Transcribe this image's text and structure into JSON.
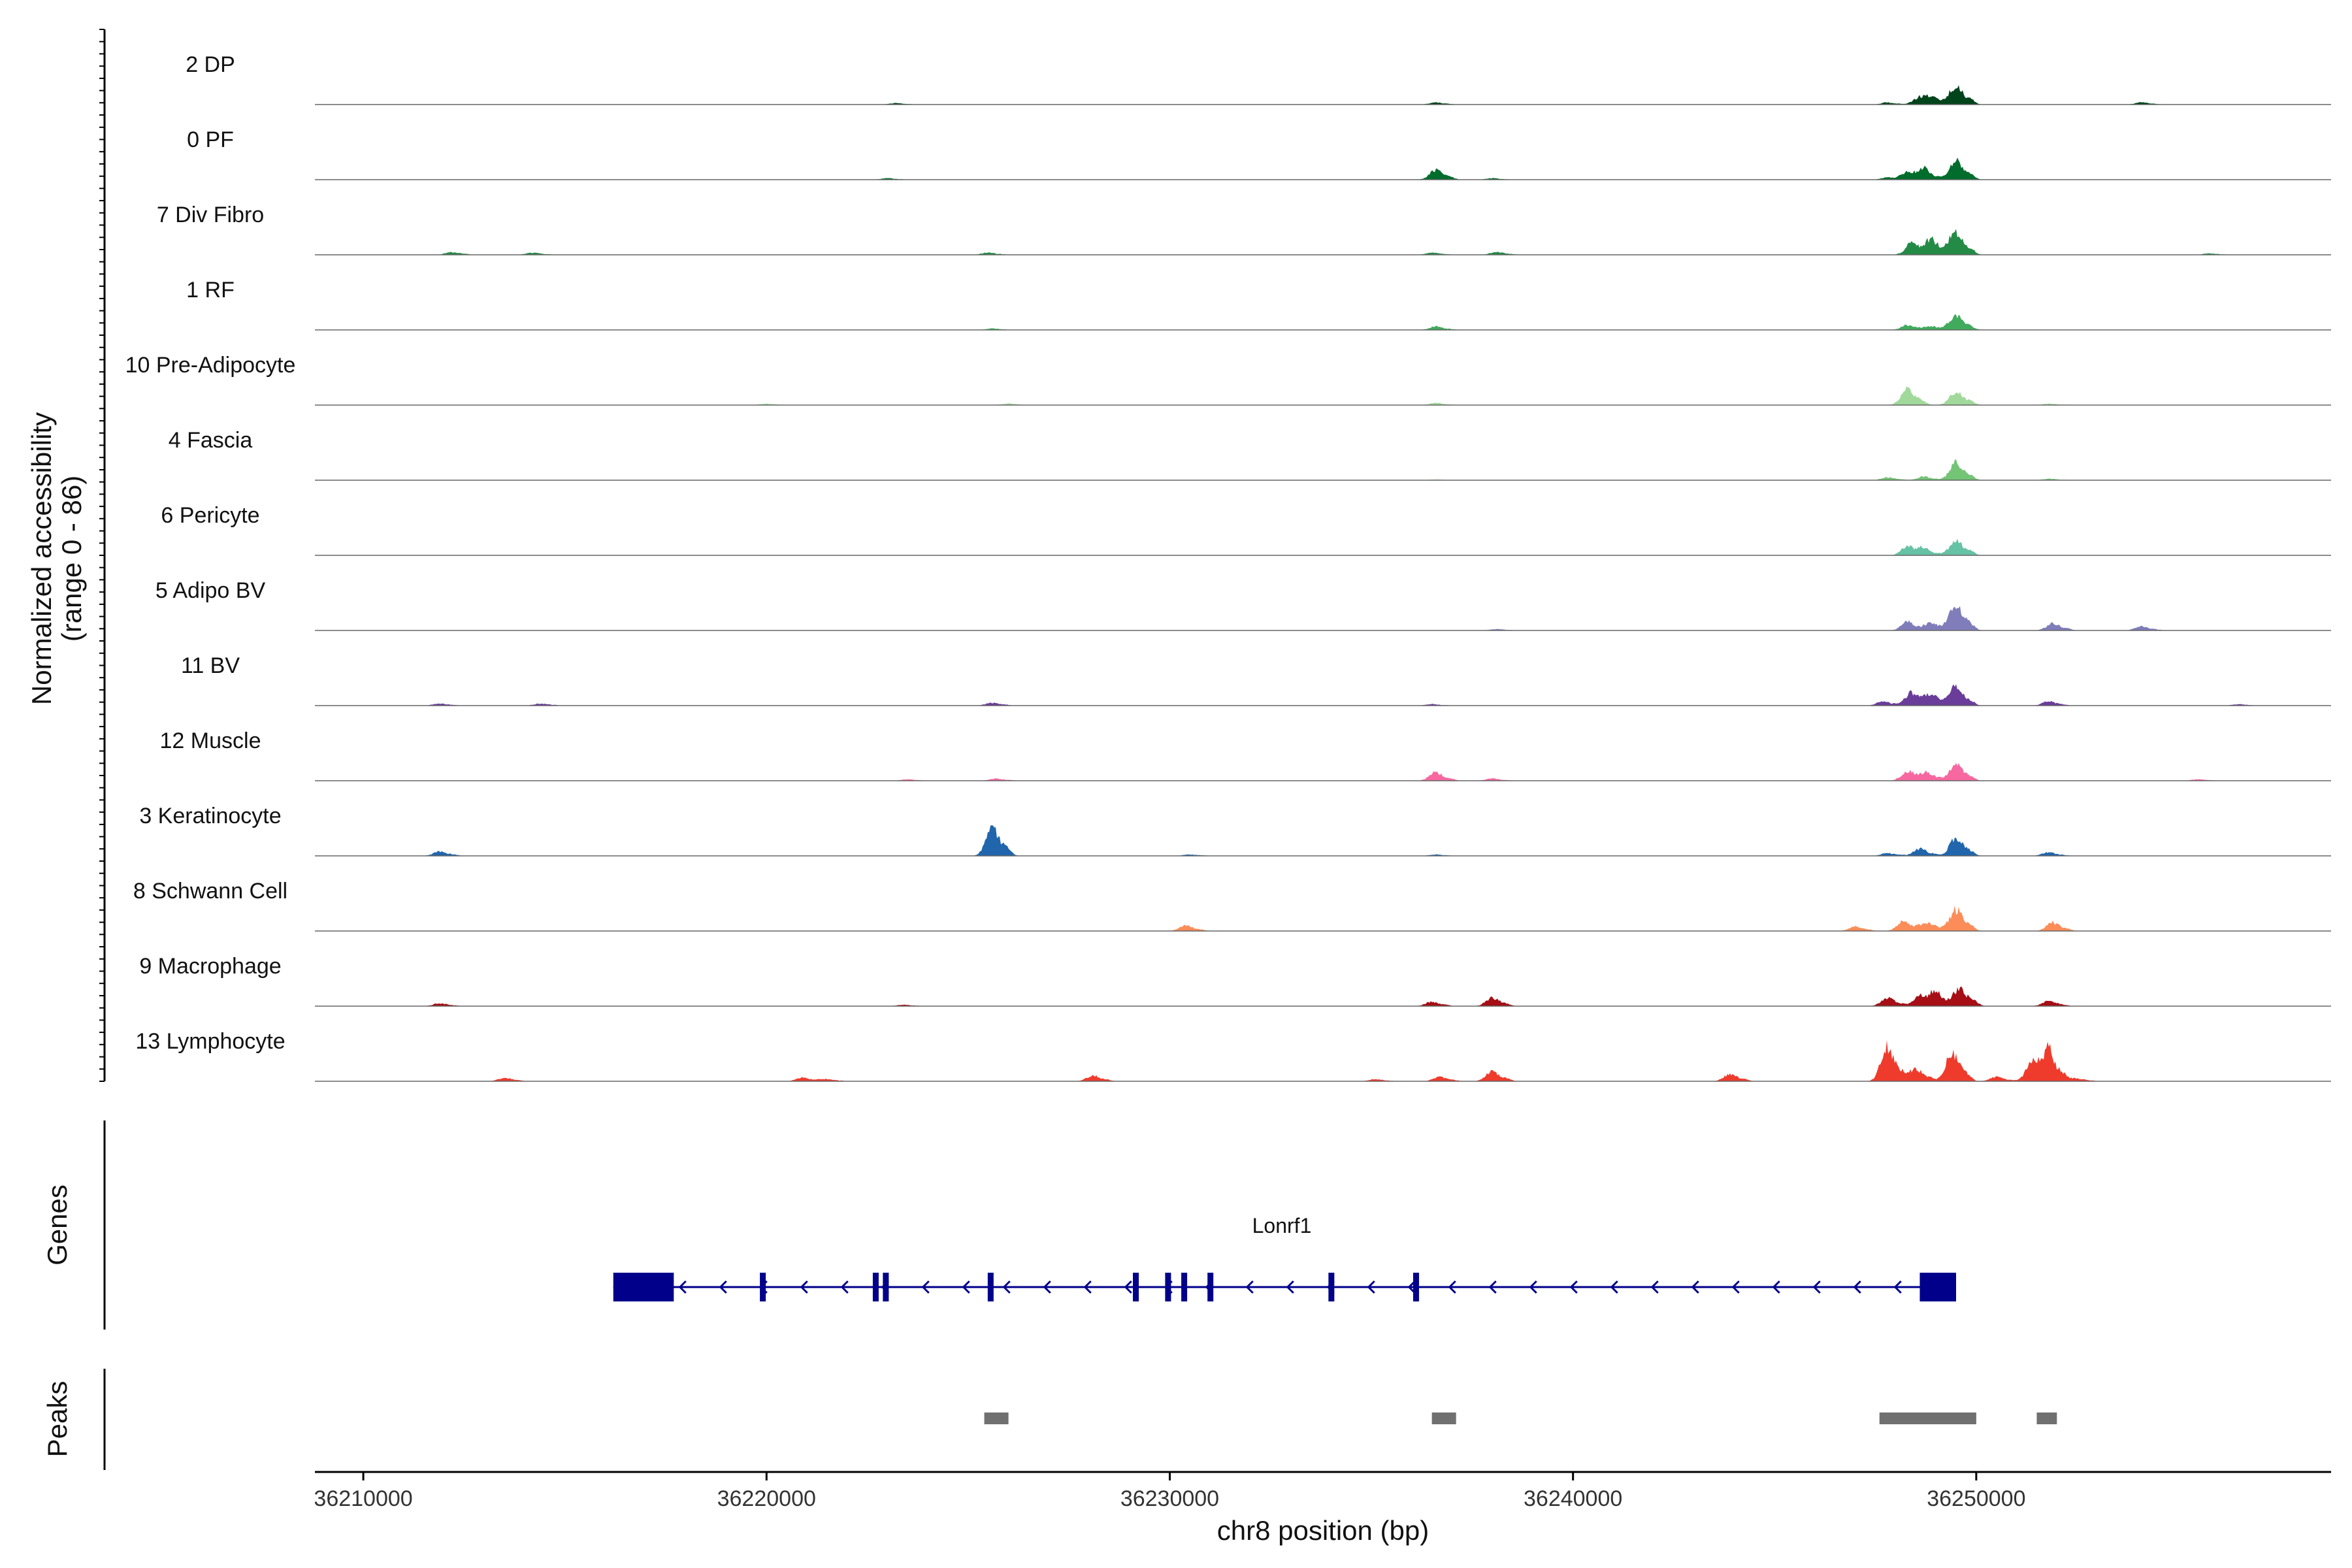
{
  "chart_data": {
    "type": "area",
    "title": "",
    "ylabel_line1": "Normalized accessibility",
    "ylabel_line2": "(range 0 - 86)",
    "yrange": [
      0,
      86
    ],
    "xlabel": "chr8 position (bp)",
    "xlim": [
      36208800,
      36258800
    ],
    "xticks": [
      36210000,
      36220000,
      36230000,
      36240000,
      36250000
    ],
    "xtick_labels": [
      "36210000",
      "36220000",
      "36230000",
      "36240000",
      "36250000"
    ],
    "genes_label": "Genes",
    "peaks_label": "Peaks",
    "tracks": [
      {
        "name": "2 DP",
        "color": "#00441b",
        "peaks": [
          [
            36223200,
            2
          ],
          [
            36236600,
            3
          ],
          [
            36247800,
            3
          ],
          [
            36248600,
            10
          ],
          [
            36248900,
            8
          ],
          [
            36249500,
            26
          ],
          [
            36254100,
            3
          ]
        ]
      },
      {
        "name": "0 PF",
        "color": "#006d2c",
        "peaks": [
          [
            36223000,
            2
          ],
          [
            36236600,
            14
          ],
          [
            36238000,
            2
          ],
          [
            36247800,
            3
          ],
          [
            36248300,
            10
          ],
          [
            36248700,
            14
          ],
          [
            36249500,
            26
          ]
        ]
      },
      {
        "name": "7 Div Fibro",
        "color": "#238b45",
        "peaks": [
          [
            36212200,
            4
          ],
          [
            36214200,
            3
          ],
          [
            36225500,
            3
          ],
          [
            36236500,
            3
          ],
          [
            36238100,
            4
          ],
          [
            36248400,
            16
          ],
          [
            36248900,
            20
          ],
          [
            36249500,
            32
          ],
          [
            36255800,
            2
          ]
        ]
      },
      {
        "name": "1 RF",
        "color": "#41ab5d",
        "peaks": [
          [
            36225600,
            2
          ],
          [
            36236600,
            5
          ],
          [
            36248300,
            7
          ],
          [
            36248900,
            5
          ],
          [
            36249500,
            20
          ]
        ]
      },
      {
        "name": "10 Pre-Adipocyte",
        "color": "#a1d99b",
        "peaks": [
          [
            36220000,
            2
          ],
          [
            36226000,
            2
          ],
          [
            36236600,
            3
          ],
          [
            36248300,
            24
          ],
          [
            36249500,
            20
          ],
          [
            36251800,
            2
          ]
        ]
      },
      {
        "name": "4 Fascia",
        "color": "#74c476",
        "peaks": [
          [
            36236600,
            1
          ],
          [
            36247800,
            4
          ],
          [
            36248700,
            5
          ],
          [
            36249500,
            24
          ],
          [
            36251800,
            2
          ]
        ]
      },
      {
        "name": "6 Pericyte",
        "color": "#66c2a4",
        "peaks": [
          [
            36248300,
            12
          ],
          [
            36248700,
            8
          ],
          [
            36249500,
            22
          ]
        ]
      },
      {
        "name": "5 Adipo BV",
        "color": "#807dba",
        "peaks": [
          [
            36238100,
            2
          ],
          [
            36248300,
            12
          ],
          [
            36248900,
            10
          ],
          [
            36249500,
            36
          ],
          [
            36251900,
            10
          ],
          [
            36254100,
            6
          ]
        ]
      },
      {
        "name": "11 BV",
        "color": "#6a3d9a",
        "peaks": [
          [
            36211900,
            3
          ],
          [
            36214400,
            3
          ],
          [
            36225600,
            4
          ],
          [
            36236500,
            2
          ],
          [
            36247700,
            6
          ],
          [
            36248400,
            18
          ],
          [
            36248900,
            14
          ],
          [
            36249500,
            26
          ],
          [
            36251800,
            6
          ],
          [
            36256500,
            2
          ]
        ]
      },
      {
        "name": "12 Muscle",
        "color": "#f768a1",
        "peaks": [
          [
            36223500,
            2
          ],
          [
            36225700,
            3
          ],
          [
            36236600,
            12
          ],
          [
            36238000,
            3
          ],
          [
            36248300,
            14
          ],
          [
            36248800,
            10
          ],
          [
            36249500,
            22
          ],
          [
            36255500,
            2
          ]
        ]
      },
      {
        "name": "3 Keratinocyte",
        "color": "#2166ac",
        "peaks": [
          [
            36211900,
            6
          ],
          [
            36225600,
            40
          ],
          [
            36230500,
            2
          ],
          [
            36236600,
            2
          ],
          [
            36247800,
            4
          ],
          [
            36248600,
            10
          ],
          [
            36249500,
            26
          ],
          [
            36251800,
            5
          ]
        ]
      },
      {
        "name": "8 Schwann Cell",
        "color": "#fc8d59",
        "peaks": [
          [
            36230400,
            8
          ],
          [
            36247000,
            6
          ],
          [
            36248200,
            14
          ],
          [
            36248800,
            12
          ],
          [
            36249500,
            30
          ],
          [
            36251900,
            12
          ]
        ]
      },
      {
        "name": "9 Macrophage",
        "color": "#a50f15",
        "peaks": [
          [
            36211900,
            4
          ],
          [
            36223400,
            2
          ],
          [
            36236500,
            6
          ],
          [
            36238000,
            12
          ],
          [
            36247800,
            12
          ],
          [
            36248600,
            14
          ],
          [
            36249000,
            18
          ],
          [
            36249600,
            24
          ],
          [
            36251800,
            8
          ]
        ]
      },
      {
        "name": "13 Lymphocyte",
        "color": "#ef3b2c",
        "peaks": [
          [
            36213500,
            5
          ],
          [
            36220900,
            5
          ],
          [
            36221500,
            3
          ],
          [
            36228100,
            8
          ],
          [
            36235100,
            3
          ],
          [
            36236700,
            6
          ],
          [
            36238000,
            14
          ],
          [
            36243900,
            10
          ],
          [
            36247800,
            48
          ],
          [
            36248500,
            18
          ],
          [
            36249400,
            40
          ],
          [
            36250500,
            6
          ],
          [
            36251400,
            28
          ],
          [
            36251800,
            38
          ],
          [
            36252500,
            4
          ]
        ]
      }
    ],
    "gene": {
      "name": "Lonrf1",
      "color": "#00008b",
      "strand": "-",
      "start": 36216200,
      "end": 36249500,
      "utrs": [
        [
          36216200,
          36217700
        ],
        [
          36248600,
          36249500
        ]
      ],
      "exons": [
        36219900,
        36222700,
        36222950,
        36225550,
        36229150,
        36229950,
        36230350,
        36231000,
        36234000,
        36236100
      ]
    },
    "peak_regions": [
      [
        36225400,
        36226000
      ],
      [
        36236500,
        36237100
      ],
      [
        36247600,
        36250000
      ],
      [
        36251500,
        36252000
      ]
    ],
    "peak_color": "#707070"
  }
}
